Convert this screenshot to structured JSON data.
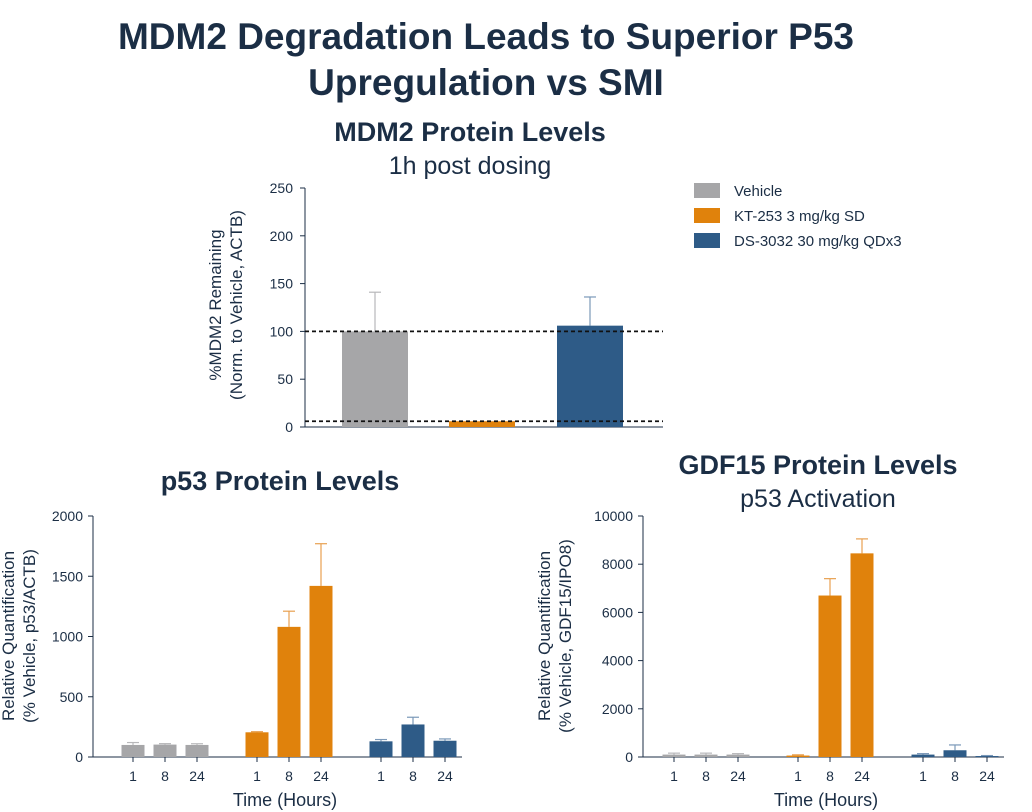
{
  "title_line1": "MDM2 Degradation Leads to Superior P53",
  "title_line2": "Upregulation vs SMI",
  "colors": {
    "vehicle": "#a6a6a8",
    "kt253": "#e0820c",
    "ds3032": "#2e5b87",
    "text": "#1b2e45"
  },
  "chart_data": [
    {
      "id": "mdm2",
      "type": "bar",
      "title": "MDM2 Protein Levels",
      "subtitle": "1h post dosing",
      "ylabel_line1": "%MDM2 Remaining",
      "ylabel_line2": "(Norm. to Vehicle, ACTB)",
      "ylim": [
        0,
        250
      ],
      "yticks": [
        0,
        50,
        100,
        150,
        200,
        250
      ],
      "reference_lines": [
        100,
        6
      ],
      "categories": [
        "Vehicle",
        "KT-253 3 mg/kg SD",
        "DS-3032 30 mg/kg QDx3"
      ],
      "values": [
        100,
        6,
        106
      ],
      "errors": [
        41,
        0,
        30
      ],
      "legend": [
        {
          "label": "Vehicle",
          "color": "#a6a6a8"
        },
        {
          "label": "KT-253 3 mg/kg SD",
          "color": "#e0820c"
        },
        {
          "label": "DS-3032 30 mg/kg QDx3",
          "color": "#2e5b87"
        }
      ]
    },
    {
      "id": "p53",
      "type": "bar",
      "title": "p53 Protein Levels",
      "ylabel_line1": "Relative Quantification",
      "ylabel_line2": "(% Vehicle, p53/ACTB)",
      "xlabel": "Time (Hours)",
      "ylim": [
        0,
        2000
      ],
      "yticks": [
        0,
        500,
        1000,
        1500,
        2000
      ],
      "series": [
        {
          "name": "Vehicle",
          "x": [
            "1",
            "8",
            "24"
          ],
          "values": [
            100,
            103,
            100
          ],
          "errors": [
            20,
            8,
            10
          ]
        },
        {
          "name": "KT-253 3 mg/kg SD",
          "x": [
            "1",
            "8",
            "24"
          ],
          "values": [
            205,
            1080,
            1420
          ],
          "errors": [
            5,
            130,
            350
          ]
        },
        {
          "name": "DS-3032 30 mg/kg QDx3",
          "x": [
            "1",
            "8",
            "24"
          ],
          "values": [
            130,
            270,
            135
          ],
          "errors": [
            15,
            60,
            15
          ]
        }
      ]
    },
    {
      "id": "gdf15",
      "type": "bar",
      "title": "GDF15 Protein Levels",
      "subtitle": "p53 Activation",
      "ylabel_line1": "Relative Quantification",
      "ylabel_line2": "(% Vehicle, GDF15/IPO8)",
      "xlabel": "Time (Hours)",
      "ylim": [
        0,
        10000
      ],
      "yticks": [
        0,
        2000,
        4000,
        6000,
        8000,
        10000
      ],
      "series": [
        {
          "name": "Vehicle",
          "x": [
            "1",
            "8",
            "24"
          ],
          "values": [
            100,
            100,
            100
          ],
          "errors": [
            60,
            60,
            40
          ]
        },
        {
          "name": "KT-253 3 mg/kg SD",
          "x": [
            "1",
            "8",
            "24"
          ],
          "values": [
            60,
            6700,
            8450
          ],
          "errors": [
            30,
            700,
            600
          ]
        },
        {
          "name": "DS-3032 30 mg/kg QDx3",
          "x": [
            "1",
            "8",
            "24"
          ],
          "values": [
            100,
            280,
            40
          ],
          "errors": [
            40,
            220,
            20
          ]
        }
      ]
    }
  ]
}
